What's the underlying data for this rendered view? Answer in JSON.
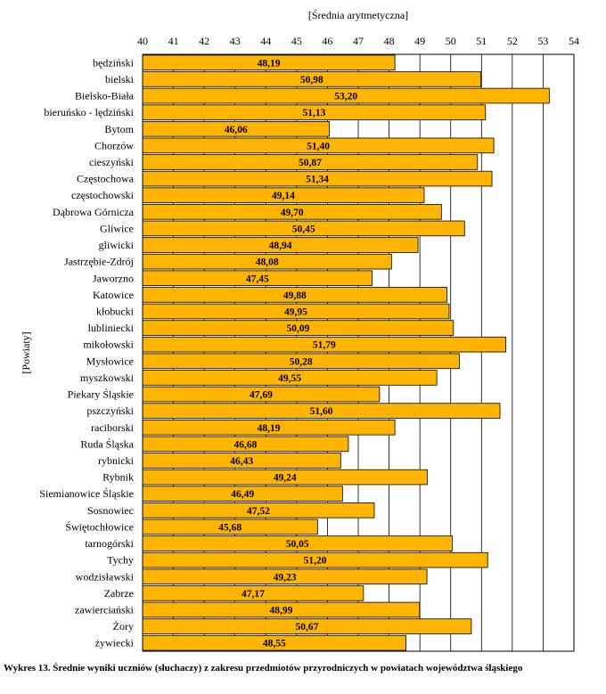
{
  "caption": "Wykres 13. Średnie wyniki uczniów (słuchaczy) z zakresu przedmiotów przyrodniczych w powiatach województwa śląskiego",
  "chart_data": {
    "type": "bar",
    "orientation": "horizontal",
    "xlabel": "[Średnia arytmetyczna]",
    "ylabel": "[Powiaty]",
    "xlim": [
      40,
      54
    ],
    "xticks": [
      40,
      41,
      42,
      43,
      44,
      45,
      46,
      47,
      48,
      49,
      50,
      51,
      52,
      53,
      54
    ],
    "grid": "vertical",
    "bar_color": "#FFB400",
    "categories": [
      "będziński",
      "bielski",
      "Bielsko-Biała",
      "bieruńsko - lędziński",
      "Bytom",
      "Chorzów",
      "cieszyński",
      "Częstochowa",
      "częstochowski",
      "Dąbrowa Górnicza",
      "Gliwice",
      "gliwicki",
      "Jastrzębie-Zdrój",
      "Jaworzno",
      "Katowice",
      "kłobucki",
      "lubliniecki",
      "mikołowski",
      "Mysłowice",
      "myszkowski",
      "Piekary Śląskie",
      "pszczyński",
      "raciborski",
      "Ruda Śląska",
      "rybnicki",
      "Rybnik",
      "Siemianowice Śląskie",
      "Sosnowiec",
      "Świętochłowice",
      "tarnogórski",
      "Tychy",
      "wodzisławski",
      "Zabrze",
      "zawierciański",
      "Żory",
      "żywiecki"
    ],
    "values": [
      48.19,
      50.98,
      53.2,
      51.13,
      46.06,
      51.4,
      50.87,
      51.34,
      49.14,
      49.7,
      50.45,
      48.94,
      48.08,
      47.45,
      49.88,
      49.95,
      50.09,
      51.79,
      50.28,
      49.55,
      47.69,
      51.6,
      48.19,
      46.68,
      46.43,
      49.24,
      46.49,
      47.52,
      45.68,
      50.05,
      51.2,
      49.23,
      47.17,
      48.99,
      50.67,
      48.55
    ],
    "value_labels": [
      "48,19",
      "50,98",
      "53,20",
      "51,13",
      "46,06",
      "51,40",
      "50,87",
      "51,34",
      "49,14",
      "49,70",
      "50,45",
      "48,94",
      "48,08",
      "47,45",
      "49,88",
      "49,95",
      "50,09",
      "51,79",
      "50,28",
      "49,55",
      "47,69",
      "51,60",
      "48,19",
      "46,68",
      "46,43",
      "49,24",
      "46,49",
      "47,52",
      "45,68",
      "50,05",
      "51,20",
      "49,23",
      "47,17",
      "48,99",
      "50,67",
      "48,55"
    ]
  }
}
